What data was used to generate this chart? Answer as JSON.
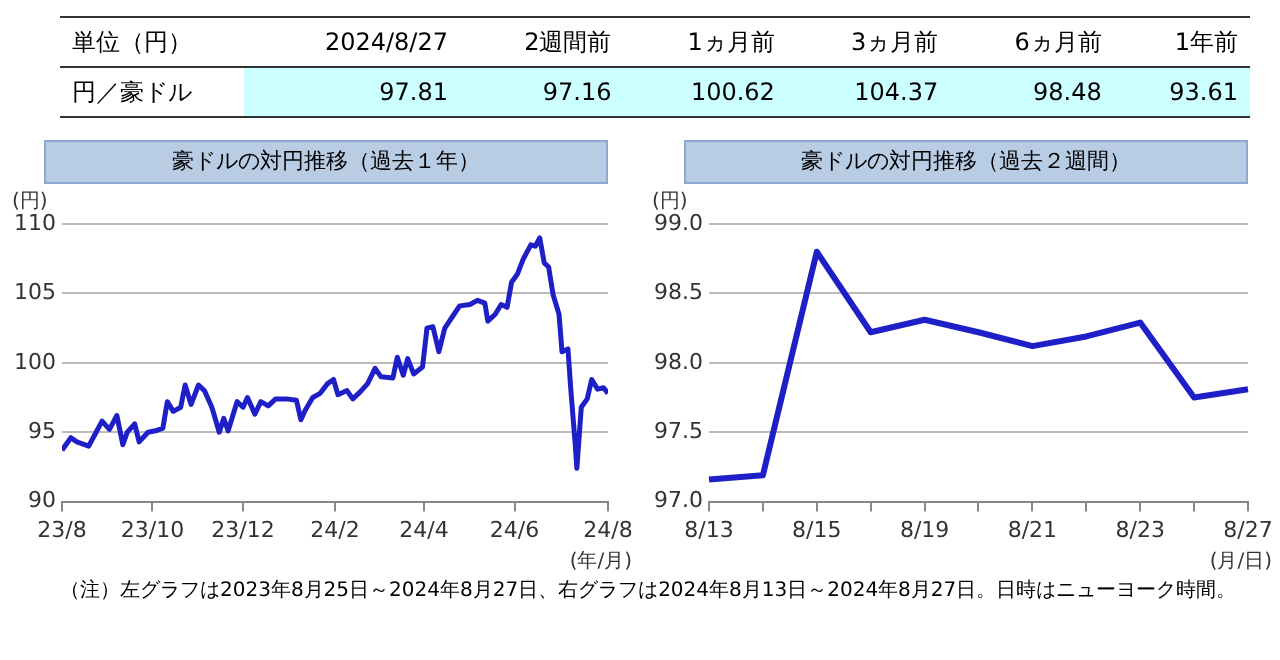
{
  "chart_data": [
    {
      "type": "other",
      "title": "単位（円）",
      "ylabel": "円／豪ドル",
      "categories": [
        "2024/8/27",
        "2週間前",
        "1ヵ月前",
        "3ヵ月前",
        "6ヵ月前",
        "1年前"
      ],
      "values": [
        97.81,
        97.16,
        100.62,
        104.37,
        98.48,
        93.61
      ],
      "data_labels": true
    },
    {
      "type": "line",
      "title": "豪ドルの対円推移（過去１年）",
      "xlabel": "(年/月)",
      "ylabel": "(円)",
      "marker": "none",
      "grid": "y",
      "xlim": [
        "2023-08-25",
        "2024-08-27"
      ],
      "xticks": [
        {
          "value": "2023-08-25",
          "label": "23/8"
        },
        {
          "value": "2023-10-25",
          "label": "23/10"
        },
        {
          "value": "2023-12-25",
          "label": "23/12"
        },
        {
          "value": "2024-02-25",
          "label": "24/2"
        },
        {
          "value": "2024-04-25",
          "label": "24/4"
        },
        {
          "value": "2024-06-25",
          "label": "24/6"
        },
        {
          "value": "2024-08-27",
          "label": "24/8"
        }
      ],
      "ylim": [
        90,
        110
      ],
      "yticks": [
        90,
        95,
        100,
        105,
        110
      ],
      "x": [
        "2023-08-25",
        "2023-08-31",
        "2023-09-04",
        "2023-09-12",
        "2023-09-16",
        "2023-09-21",
        "2023-09-26",
        "2023-10-01",
        "2023-10-05",
        "2023-10-08",
        "2023-10-13",
        "2023-10-16",
        "2023-10-22",
        "2023-10-27",
        "2023-11-01",
        "2023-11-04",
        "2023-11-08",
        "2023-11-13",
        "2023-11-16",
        "2023-11-20",
        "2023-11-25",
        "2023-11-29",
        "2023-12-04",
        "2023-12-09",
        "2023-12-12",
        "2023-12-15",
        "2023-12-21",
        "2023-12-25",
        "2023-12-28",
        "2024-01-02",
        "2024-01-06",
        "2024-01-11",
        "2024-01-16",
        "2024-01-23",
        "2024-01-30",
        "2024-02-02",
        "2024-02-05",
        "2024-02-10",
        "2024-02-15",
        "2024-02-20",
        "2024-02-24",
        "2024-02-27",
        "2024-03-04",
        "2024-03-08",
        "2024-03-13",
        "2024-03-18",
        "2024-03-23",
        "2024-03-27",
        "2024-04-04",
        "2024-04-07",
        "2024-04-11",
        "2024-04-14",
        "2024-04-18",
        "2024-04-24",
        "2024-04-27",
        "2024-05-01",
        "2024-05-05",
        "2024-05-09",
        "2024-05-14",
        "2024-05-19",
        "2024-05-26",
        "2024-05-31",
        "2024-06-05",
        "2024-06-07",
        "2024-06-12",
        "2024-06-16",
        "2024-06-20",
        "2024-06-23",
        "2024-06-27",
        "2024-07-01",
        "2024-07-06",
        "2024-07-09",
        "2024-07-12",
        "2024-07-15",
        "2024-07-18",
        "2024-07-21",
        "2024-07-25",
        "2024-07-27",
        "2024-07-31",
        "2024-08-02",
        "2024-08-05",
        "2024-08-06",
        "2024-08-09",
        "2024-08-13",
        "2024-08-16",
        "2024-08-20",
        "2024-08-24",
        "2024-08-27"
      ],
      "series": [
        {
          "color": "#1f1fc8",
          "values": [
            93.7,
            94.6,
            94.3,
            94.0,
            94.8,
            95.8,
            95.2,
            96.2,
            94.1,
            95.0,
            95.6,
            94.3,
            95.0,
            95.1,
            95.3,
            97.2,
            96.5,
            96.8,
            98.4,
            97.0,
            98.4,
            98.0,
            96.8,
            95.0,
            96.0,
            95.1,
            97.2,
            96.8,
            97.5,
            96.3,
            97.2,
            96.9,
            97.4,
            97.4,
            97.3,
            95.9,
            96.6,
            97.5,
            97.8,
            98.5,
            98.8,
            97.7,
            98.0,
            97.4,
            97.9,
            98.5,
            99.6,
            99.0,
            98.9,
            100.4,
            99.1,
            100.3,
            99.2,
            99.7,
            102.5,
            102.6,
            100.8,
            102.5,
            103.3,
            104.1,
            104.2,
            104.5,
            104.3,
            103.0,
            103.5,
            104.2,
            104.0,
            105.8,
            106.4,
            107.5,
            108.5,
            108.4,
            109.0,
            107.2,
            106.9,
            104.9,
            103.5,
            100.8,
            101.0,
            98.0,
            94.0,
            92.4,
            96.8,
            97.4,
            98.8,
            98.1,
            98.2,
            97.8
          ]
        }
      ]
    },
    {
      "type": "line",
      "title": "豪ドルの対円推移（過去２週間）",
      "xlabel": "(月/日)",
      "ylabel": "(円)",
      "marker": "none",
      "grid": "y",
      "categories": [
        "8/13",
        null,
        "8/15",
        null,
        "8/19",
        null,
        "8/21",
        null,
        "8/23",
        null,
        "8/27"
      ],
      "ylim": [
        97,
        99
      ],
      "yticks": [
        {
          "value": 97,
          "label": "97.0"
        },
        {
          "value": 97.5,
          "label": "97.5"
        },
        {
          "value": 98,
          "label": "98.0"
        },
        {
          "value": 98.5,
          "label": "98.5"
        },
        {
          "value": 99,
          "label": "99.0"
        }
      ],
      "series": [
        {
          "color": "#1f1fc8",
          "values": [
            97.16,
            97.19,
            98.8,
            98.22,
            98.31,
            98.22,
            98.12,
            98.19,
            98.29,
            97.75,
            97.81
          ]
        }
      ],
      "annotations": [
        "（注）左グラフは2023年8月25日～2024年8月27日、右グラフは2024年8月13日～2024年8月27日。日時はニューヨーク時間。"
      ]
    }
  ]
}
